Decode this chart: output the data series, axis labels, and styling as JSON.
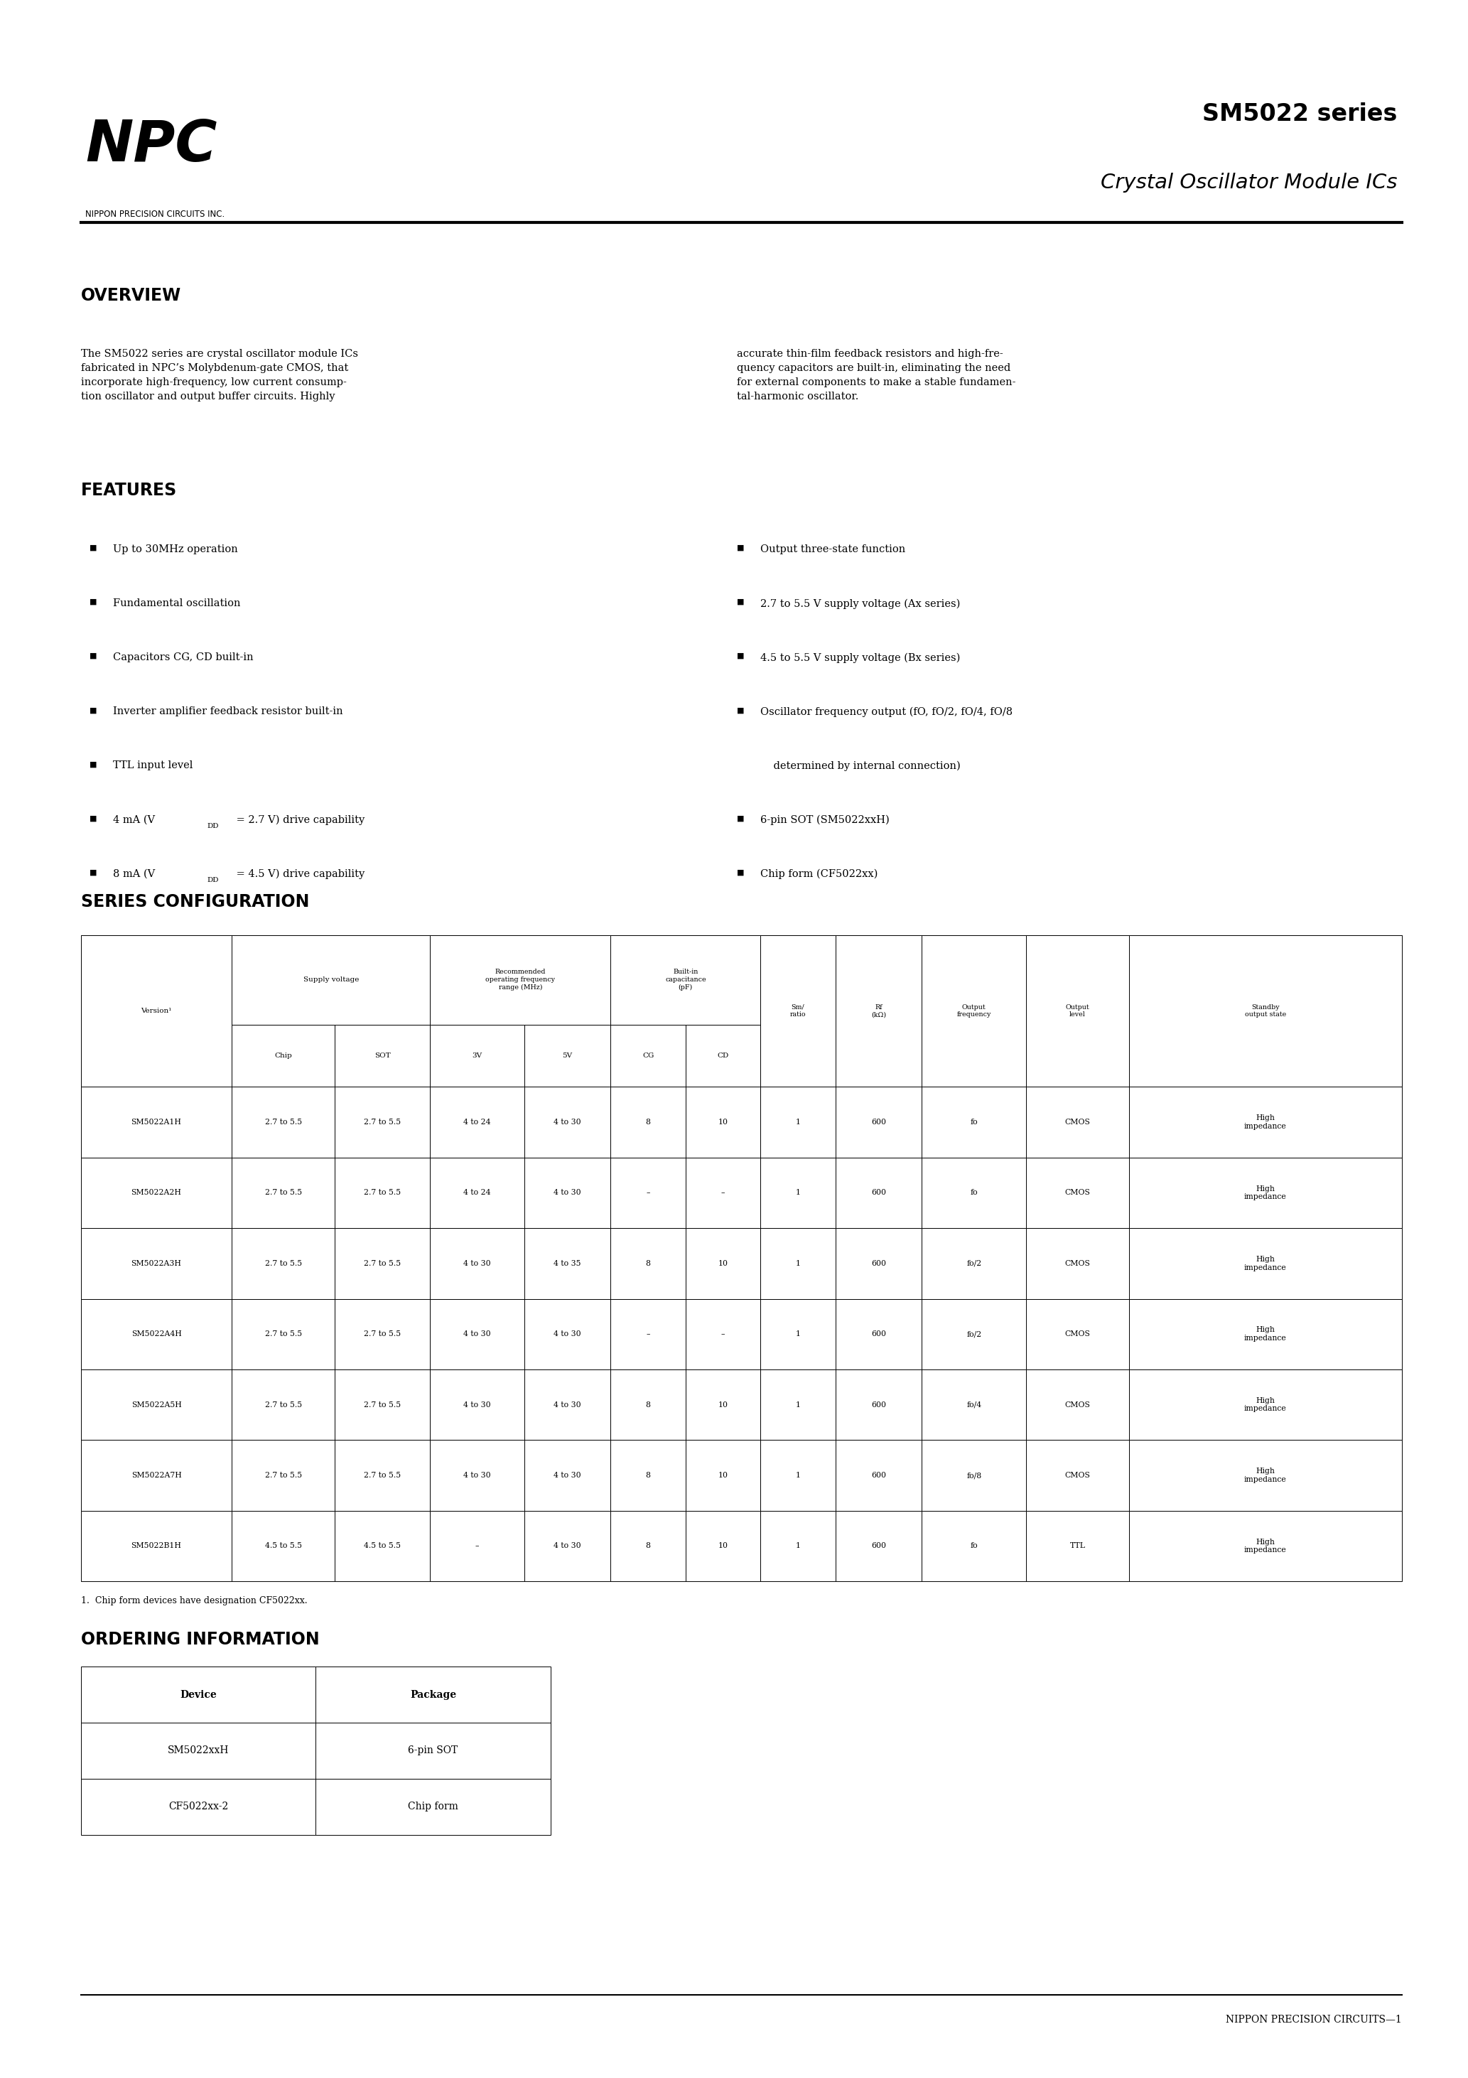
{
  "page_bg": "#ffffff",
  "company_subtitle": "NIPPON PRECISION CIRCUITS INC.",
  "series_title": "SM5022 series",
  "product_title": "Crystal Oscillator Module ICs",
  "overview_title": "OVERVIEW",
  "overview_text_left": "The SM5022 series are crystal oscillator module ICs\nfabricated in NPC’s Molybdenum-gate CMOS, that\nincorporate high-frequency, low current consump-\ntion oscillator and output buffer circuits. Highly",
  "overview_text_right": "accurate thin-film feedback resistors and high-fre-\nquency capacitors are built-in, eliminating the need\nfor external components to make a stable fundamen-\ntal-harmonic oscillator.",
  "features_title": "FEATURES",
  "features_left": [
    "Up to 30MHz operation",
    "Fundamental oscillation",
    "Capacitors CG, CD built-in",
    "Inverter amplifier feedback resistor built-in",
    "TTL input level",
    "4 mA (VDD = 2.7 V) drive capability",
    "8 mA (VDD = 4.5 V) drive capability"
  ],
  "features_right": [
    "Output three-state function",
    "2.7 to 5.5 V supply voltage (Ax series)",
    "4.5 to 5.5 V supply voltage (Bx series)",
    "Oscillator frequency output (fO, fO/2, fO/4, fO/8",
    "    determined by internal connection)",
    "6-pin SOT (SM5022xxH)",
    "Chip form (CF5022xx)"
  ],
  "series_config_title": "SERIES CONFIGURATION",
  "table_data_rows": [
    [
      "SM5022A1H",
      "2.7 to 5.5",
      "2.7 to 5.5",
      "4 to 24",
      "4 to 30",
      "8",
      "10",
      "1",
      "600",
      "fo",
      "CMOS",
      "High\nimpedance"
    ],
    [
      "SM5022A2H",
      "2.7 to 5.5",
      "2.7 to 5.5",
      "4 to 24",
      "4 to 30",
      "–",
      "–",
      "1",
      "600",
      "fo",
      "CMOS",
      "High\nimpedance"
    ],
    [
      "SM5022A3H",
      "2.7 to 5.5",
      "2.7 to 5.5",
      "4 to 30",
      "4 to 35",
      "8",
      "10",
      "1",
      "600",
      "fo/2",
      "CMOS",
      "High\nimpedance"
    ],
    [
      "SM5022A4H",
      "2.7 to 5.5",
      "2.7 to 5.5",
      "4 to 30",
      "4 to 30",
      "–",
      "–",
      "1",
      "600",
      "fo/2",
      "CMOS",
      "High\nimpedance"
    ],
    [
      "SM5022A5H",
      "2.7 to 5.5",
      "2.7 to 5.5",
      "4 to 30",
      "4 to 30",
      "8",
      "10",
      "1",
      "600",
      "fo/4",
      "CMOS",
      "High\nimpedance"
    ],
    [
      "SM5022A7H",
      "2.7 to 5.5",
      "2.7 to 5.5",
      "4 to 30",
      "4 to 30",
      "8",
      "10",
      "1",
      "600",
      "fo/8",
      "CMOS",
      "High\nimpedance"
    ],
    [
      "SM5022B1H",
      "4.5 to 5.5",
      "4.5 to 5.5",
      "–",
      "4 to 30",
      "8",
      "10",
      "1",
      "600",
      "fo",
      "TTL",
      "High\nimpedance"
    ]
  ],
  "table_footnote": "1.  Chip form devices have designation CF5022xx.",
  "ordering_title": "ORDERING INFORMATION",
  "ordering_rows": [
    [
      "Device",
      "Package"
    ],
    [
      "SM5022xxH",
      "6-pin SOT"
    ],
    [
      "CF5022xx-2",
      "Chip form"
    ]
  ],
  "footer_text": "NIPPON PRECISION CIRCUITS—1"
}
